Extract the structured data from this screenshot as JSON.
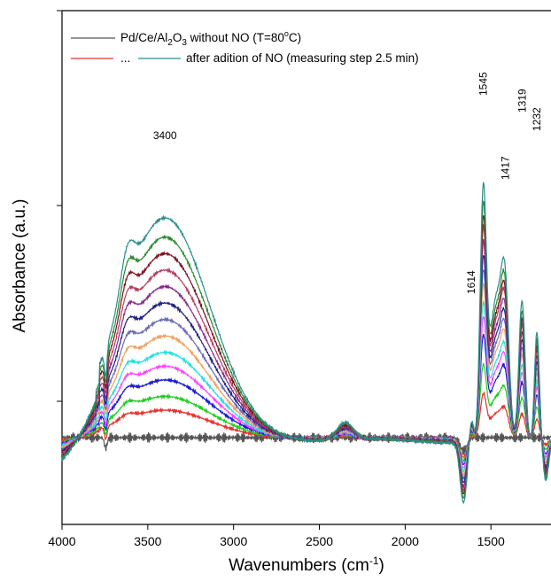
{
  "chart_data": {
    "type": "line",
    "title": "",
    "xlabel": "Wavenumbers (cm",
    "xlabel_sup": "-1",
    "xlabel_end": ")",
    "ylabel": "Absorbance (a.u.)",
    "xlim": [
      4000,
      1150
    ],
    "x_reversed": true,
    "ylim": [
      0,
      1
    ],
    "x_ticks": [
      "4000",
      "3500",
      "3000",
      "2500",
      "2000",
      "1500"
    ],
    "x_tick_values": [
      4000,
      3500,
      3000,
      2500,
      2000,
      1500
    ],
    "y_ticks_labeled": false,
    "grid": false,
    "legend": {
      "placement": "top-left",
      "entry1": {
        "pre": "Pd/Ce/Al",
        "sub1": "2",
        "mid": "O",
        "sub2": "3",
        "post": " without NO (T=80",
        "deg": "o",
        "end": "C)",
        "color": "#555555"
      },
      "entry2": {
        "text": "...",
        "text2": "after adition of NO (measuring step 2.5 min)",
        "color_first": "#e83030",
        "color_last": "#2c8c8c"
      }
    },
    "annotations": [
      {
        "text": "3400",
        "x": 3400
      },
      {
        "text": "1614",
        "x": 1614
      },
      {
        "text": "1545",
        "x": 1545
      },
      {
        "text": "1417",
        "x": 1417
      },
      {
        "text": "1319",
        "x": 1319
      },
      {
        "text": "1232",
        "x": 1232
      }
    ],
    "series": [
      {
        "color": "#555555",
        "peak": 0.0,
        "tail": 0.0
      },
      {
        "color": "#e83030",
        "peak": 0.1,
        "tail": 0.12
      },
      {
        "color": "#22cc22",
        "peak": 0.15,
        "tail": 0.2
      },
      {
        "color": "#1a1ad0",
        "peak": 0.21,
        "tail": 0.28
      },
      {
        "color": "#ff44ff",
        "peak": 0.26,
        "tail": 0.33
      },
      {
        "color": "#22e0e0",
        "peak": 0.31,
        "tail": 0.37
      },
      {
        "color": "#f0a060",
        "peak": 0.37,
        "tail": 0.42
      },
      {
        "color": "#6a6ab8",
        "peak": 0.43,
        "tail": 0.46
      },
      {
        "color": "#202080",
        "peak": 0.49,
        "tail": 0.5
      },
      {
        "color": "#8a2a8a",
        "peak": 0.55,
        "tail": 0.54
      },
      {
        "color": "#b04060",
        "peak": 0.61,
        "tail": 0.58
      },
      {
        "color": "#7a1020",
        "peak": 0.67,
        "tail": 0.61
      },
      {
        "color": "#2a8a2a",
        "peak": 0.73,
        "tail": 0.65
      },
      {
        "color": "#2c8c8c",
        "peak": 0.8,
        "tail": 0.7
      }
    ]
  }
}
